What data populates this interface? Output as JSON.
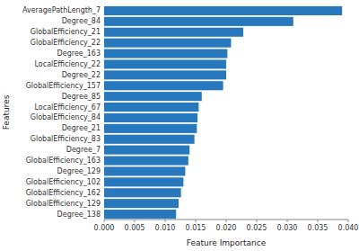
{
  "chart_data": {
    "type": "bar",
    "orientation": "horizontal",
    "xlabel": "Feature Importance",
    "ylabel": "Features",
    "categories": [
      "Degree_138",
      "GlobalEfficiency_129",
      "GlobalEfficiency_162",
      "GlobalEfficiency_102",
      "Degree_129",
      "GlobalEfficiency_163",
      "Degree_7",
      "GlobalEfficiency_83",
      "Degree_21",
      "GlobalEfficiency_84",
      "LocalEfficiency_67",
      "Degree_85",
      "GlobalEfficiency_157",
      "Degree_22",
      "LocalEfficiency_22",
      "Degree_163",
      "GlobalEfficiency_22",
      "GlobalEfficiency_21",
      "Degree_84",
      "AveragePathLength_7"
    ],
    "values": [
      0.0118,
      0.0122,
      0.0126,
      0.013,
      0.0133,
      0.0138,
      0.014,
      0.0148,
      0.0152,
      0.0153,
      0.0155,
      0.016,
      0.0195,
      0.02,
      0.02,
      0.0202,
      0.0208,
      0.0228,
      0.031,
      0.039
    ],
    "color": "#2878bd",
    "xlim": [
      0,
      0.04
    ],
    "xticks": [
      {
        "value": 0.0,
        "label": "0.000"
      },
      {
        "value": 0.005,
        "label": "0.005"
      },
      {
        "value": 0.01,
        "label": "0.010"
      },
      {
        "value": 0.015,
        "label": "0.015"
      },
      {
        "value": 0.02,
        "label": "0.020"
      },
      {
        "value": 0.025,
        "label": "0.025"
      },
      {
        "value": 0.03,
        "label": "0.030"
      },
      {
        "value": 0.035,
        "label": "0.035"
      },
      {
        "value": 0.04,
        "label": "0.040"
      }
    ],
    "grid": false
  }
}
